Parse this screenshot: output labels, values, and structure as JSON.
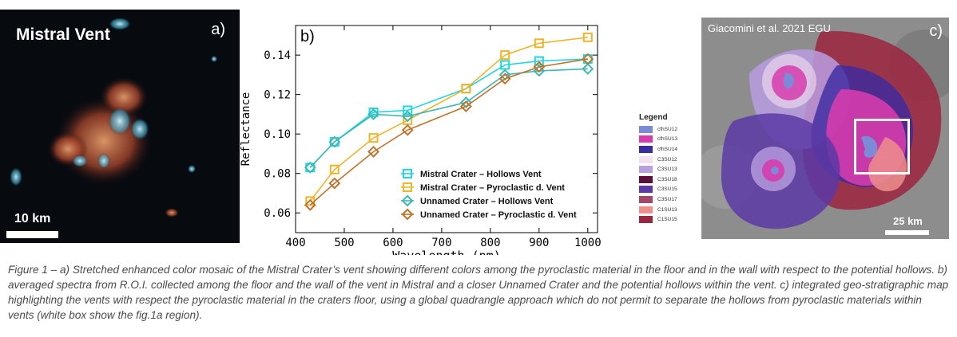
{
  "panel_a": {
    "title": "Mistral Vent",
    "letter": "a)",
    "scale_label": "10 km"
  },
  "panel_c": {
    "credit": "Giacomini et al. 2021 EGU",
    "letter": "c)",
    "scale_label": "25 km",
    "legend": {
      "title": "Legend",
      "items": [
        {
          "label": "cfhSU12",
          "color": "#7b8bd8"
        },
        {
          "label": "cfhSU13",
          "color": "#d63cad"
        },
        {
          "label": "cfhSU14",
          "color": "#3b2aa0"
        },
        {
          "label": "C3SU12",
          "color": "#f3e0f0"
        },
        {
          "label": "C3SU13",
          "color": "#b99ee0"
        },
        {
          "label": "C3SU18",
          "color": "#5a0f3a"
        },
        {
          "label": "C3SU15",
          "color": "#5a3aa6"
        },
        {
          "label": "C3SU17",
          "color": "#a2486c"
        },
        {
          "label": "C1SU13",
          "color": "#ef8f8c"
        },
        {
          "label": "C1SU15",
          "color": "#9c2540"
        }
      ]
    }
  },
  "chart_data": {
    "type": "line",
    "letter": "b)",
    "xlabel": "Wavelength (nm)",
    "ylabel": "Reflectance",
    "xlim": [
      400,
      1020
    ],
    "ylim": [
      0.05,
      0.155
    ],
    "xticks": [
      400,
      500,
      600,
      700,
      800,
      900,
      1000
    ],
    "yticks": [
      0.06,
      0.08,
      0.1,
      0.12,
      0.14
    ],
    "ytick_labels": [
      "0.06",
      "0.08",
      "0.10",
      "0.12",
      "0.14"
    ],
    "legend_position": "bottom-right",
    "series": [
      {
        "name": "Mistral Crater – Hollows Vent",
        "color": "#22d6e0",
        "marker": "square",
        "x": [
          430,
          480,
          560,
          630,
          750,
          830,
          900,
          1000
        ],
        "y": [
          0.083,
          0.096,
          0.111,
          0.112,
          0.123,
          0.135,
          0.137,
          0.138
        ]
      },
      {
        "name": "Mistral Crater – Pyroclastic d. Vent",
        "color": "#f0b429",
        "marker": "square",
        "x": [
          430,
          480,
          560,
          630,
          750,
          830,
          900,
          1000
        ],
        "y": [
          0.066,
          0.082,
          0.098,
          0.107,
          0.123,
          0.14,
          0.146,
          0.149
        ]
      },
      {
        "name": "Unnamed Crater – Hollows Vent",
        "color": "#3cb8b8",
        "marker": "diamond",
        "x": [
          430,
          480,
          560,
          630,
          750,
          830,
          900,
          1000
        ],
        "y": [
          0.083,
          0.096,
          0.11,
          0.109,
          0.116,
          0.13,
          0.132,
          0.133
        ]
      },
      {
        "name": "Unnamed Crater – Pyroclastic d. Vent",
        "color": "#c0732a",
        "marker": "diamond",
        "x": [
          430,
          480,
          560,
          630,
          750,
          830,
          900,
          1000
        ],
        "y": [
          0.064,
          0.075,
          0.091,
          0.102,
          0.114,
          0.128,
          0.134,
          0.138
        ]
      }
    ]
  },
  "caption": "Figure 1 – a) Stretched enhanced color mosaic of the Mistral Crater’s vent showing different colors among the pyroclastic material in the floor and in the wall with respect to the potential hollows. b) averaged spectra from R.O.I. collected among the floor and the wall of the vent in Mistral and a closer Unnamed Crater and the potential hollows within the vent. c) integrated geo-stratigraphic map highlighting the vents with respect the pyroclastic material in the craters floor, using a global quadrangle approach which do not permit to separate the hollows from pyroclastic materials within vents (white box show the fig.1a region)."
}
